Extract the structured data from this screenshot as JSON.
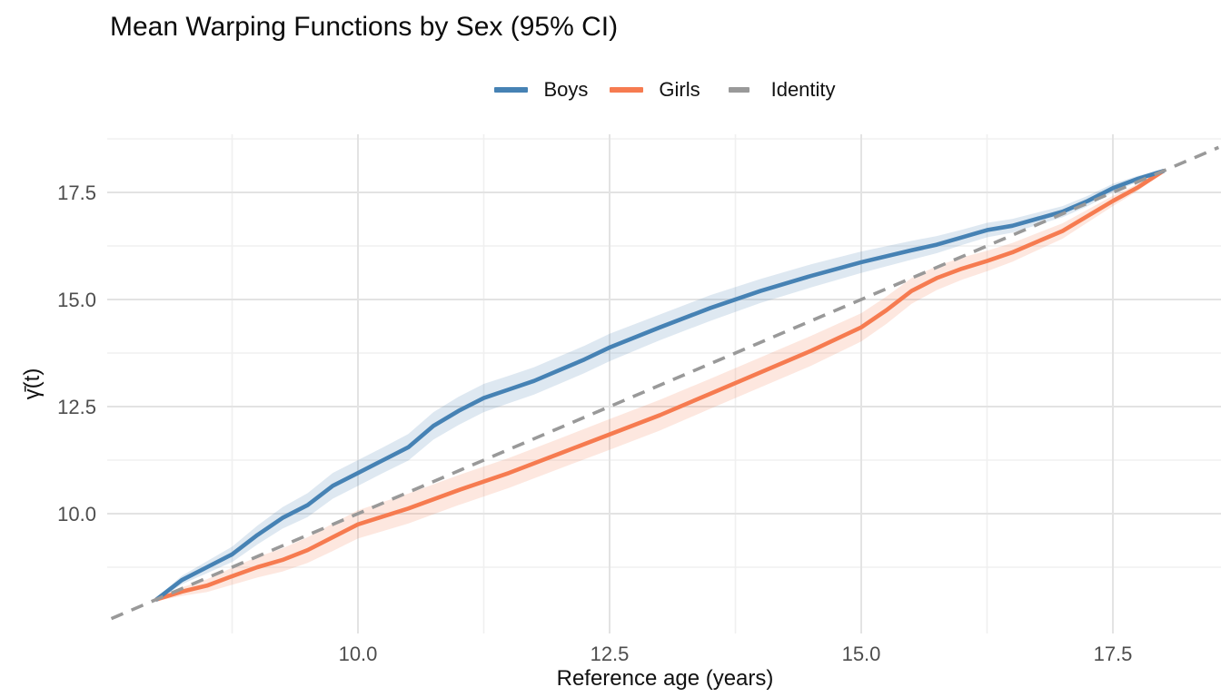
{
  "chart_data": {
    "type": "line",
    "title": "Mean Warping Functions by Sex (95% CI)",
    "xlabel": "Reference age (years)",
    "ylabel": "γ̄(t)",
    "xlim": [
      7.55,
      18.55
    ],
    "ylim": [
      7.25,
      18.8
    ],
    "grid": true,
    "legend_position": "top",
    "x_ticks": {
      "major": [
        10,
        12.5,
        15,
        17.5
      ],
      "major_labels": [
        "10.0",
        "12.5",
        "15.0",
        "17.5"
      ],
      "minor": [
        8.75,
        11.25,
        13.75,
        16.25
      ]
    },
    "y_ticks": {
      "major": [
        10,
        12.5,
        15,
        17.5
      ],
      "major_labels": [
        "10.0",
        "12.5",
        "15.0",
        "17.5"
      ],
      "minor": [
        8.75,
        11.25,
        13.75,
        16.25,
        18.75
      ]
    },
    "series": [
      {
        "name": "Boys",
        "color": "#4682B4",
        "dashed": false,
        "band_opacity": 0.18,
        "t": [
          8,
          8.25,
          8.5,
          8.75,
          9,
          9.25,
          9.5,
          9.75,
          10,
          10.25,
          10.5,
          10.75,
          11,
          11.25,
          11.5,
          11.75,
          12,
          12.25,
          12.5,
          13,
          13.5,
          14,
          14.5,
          15,
          15.5,
          15.75,
          16,
          16.25,
          16.5,
          17,
          17.25,
          17.5,
          17.75,
          18
        ],
        "values": [
          8.0,
          8.45,
          8.75,
          9.05,
          9.5,
          9.9,
          10.2,
          10.65,
          10.95,
          11.25,
          11.55,
          12.05,
          12.4,
          12.7,
          12.9,
          13.1,
          13.35,
          13.6,
          13.88,
          14.35,
          14.8,
          15.2,
          15.55,
          15.87,
          16.15,
          16.28,
          16.45,
          16.62,
          16.72,
          17.05,
          17.3,
          17.6,
          17.82,
          18.0
        ],
        "ci_halfwidth": [
          0.04,
          0.1,
          0.14,
          0.18,
          0.22,
          0.25,
          0.28,
          0.3,
          0.3,
          0.3,
          0.31,
          0.32,
          0.33,
          0.33,
          0.32,
          0.32,
          0.32,
          0.32,
          0.32,
          0.3,
          0.3,
          0.28,
          0.27,
          0.25,
          0.22,
          0.2,
          0.18,
          0.17,
          0.16,
          0.13,
          0.12,
          0.1,
          0.07,
          0.03
        ]
      },
      {
        "name": "Girls",
        "color": "#F67B50",
        "dashed": false,
        "band_opacity": 0.18,
        "t": [
          8,
          8.25,
          8.5,
          8.75,
          9,
          9.25,
          9.5,
          9.75,
          10,
          10.5,
          11,
          11.5,
          12,
          12.5,
          13,
          13.5,
          14,
          14.5,
          15,
          15.25,
          15.5,
          15.75,
          16,
          16.25,
          16.5,
          17,
          17.5,
          17.75,
          18
        ],
        "values": [
          8.0,
          8.18,
          8.32,
          8.54,
          8.75,
          8.92,
          9.15,
          9.45,
          9.75,
          10.12,
          10.55,
          10.95,
          11.4,
          11.85,
          12.3,
          12.8,
          13.3,
          13.8,
          14.35,
          14.75,
          15.2,
          15.5,
          15.72,
          15.9,
          16.1,
          16.6,
          17.3,
          17.62,
          18.0
        ],
        "ci_halfwidth": [
          0.04,
          0.1,
          0.15,
          0.2,
          0.24,
          0.27,
          0.3,
          0.32,
          0.33,
          0.35,
          0.35,
          0.35,
          0.35,
          0.36,
          0.36,
          0.35,
          0.35,
          0.35,
          0.33,
          0.32,
          0.3,
          0.28,
          0.26,
          0.24,
          0.22,
          0.18,
          0.12,
          0.08,
          0.03
        ]
      },
      {
        "name": "Identity",
        "color": "#999999",
        "dashed": true,
        "t": [
          7.55,
          18.55
        ],
        "values": [
          7.55,
          18.55
        ]
      }
    ]
  },
  "legend": {
    "items": [
      {
        "label": "Boys",
        "color": "#4682B4",
        "style": "solid"
      },
      {
        "label": "Girls",
        "color": "#F67B50",
        "style": "solid"
      },
      {
        "label": "Identity",
        "color": "#999999",
        "style": "dashed"
      }
    ]
  }
}
